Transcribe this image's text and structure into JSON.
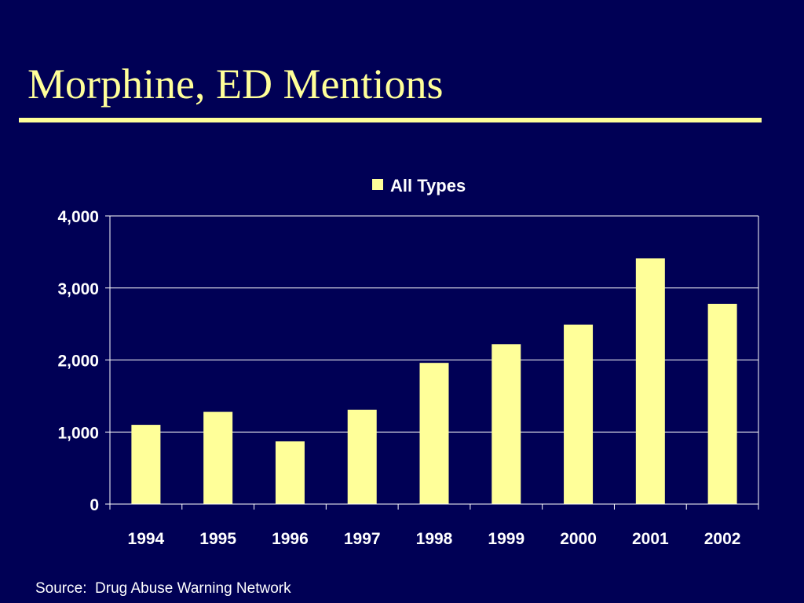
{
  "slide": {
    "title": "Morphine, ED Mentions",
    "source": "Source:  Drug Abuse Warning Network"
  },
  "colors": {
    "background": "#000055",
    "title": "#FFFF99",
    "bar": "#FFFF99",
    "axis_text": "#FFFFFF",
    "gridline": "#FFFFFF"
  },
  "chart_data": {
    "type": "bar",
    "title": "",
    "xlabel": "",
    "ylabel": "",
    "categories": [
      "1994",
      "1995",
      "1996",
      "1997",
      "1998",
      "1999",
      "2000",
      "2001",
      "2002"
    ],
    "series": [
      {
        "name": "All Types",
        "values": [
          1100,
          1280,
          870,
          1310,
          1960,
          2220,
          2490,
          3410,
          2780
        ]
      }
    ],
    "ylim": [
      0,
      4000
    ],
    "yticks": [
      0,
      1000,
      2000,
      3000,
      4000
    ],
    "ytick_labels": [
      "0",
      "1,000",
      "2,000",
      "3,000",
      "4,000"
    ],
    "grid": true,
    "legend_position": "top-center"
  }
}
